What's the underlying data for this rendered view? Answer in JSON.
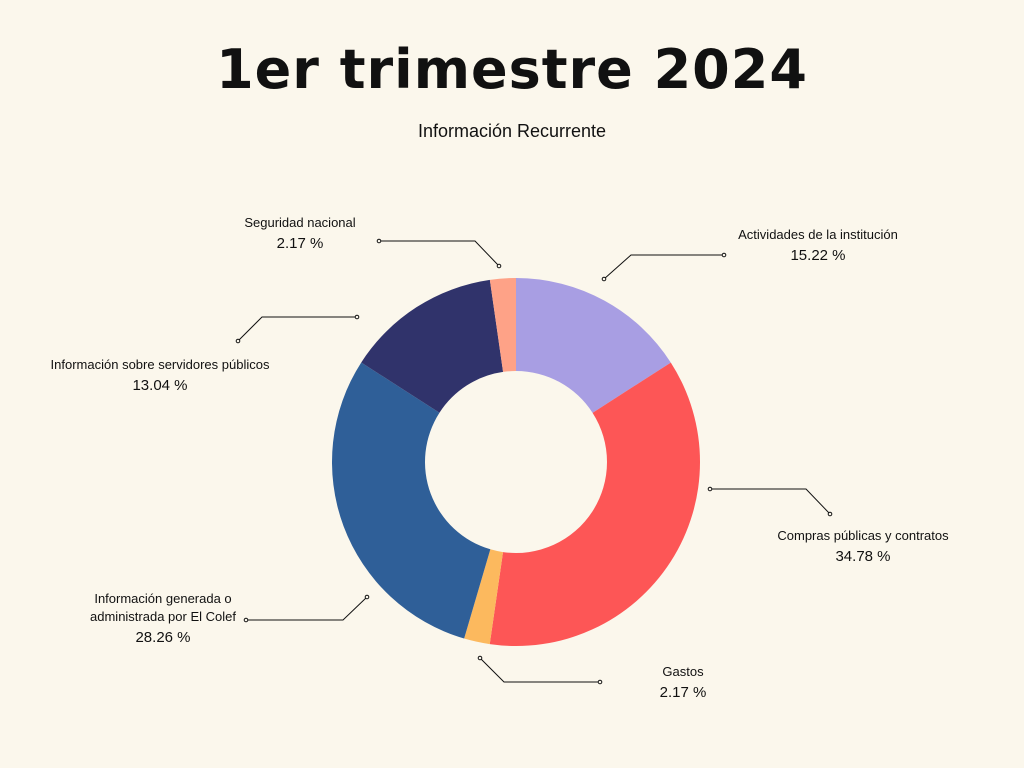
{
  "title": "1er trimestre 2024",
  "subtitle": "Información Recurrente",
  "chart_data": {
    "type": "pie",
    "title": "1er trimestre 2024",
    "subtitle": "Información Recurrente",
    "donut": true,
    "slices": [
      {
        "label": "Actividades de la institución",
        "value": 15.22,
        "value_label": "15.22 %",
        "color": "#a89ee3"
      },
      {
        "label": "Compras públicas y contratos",
        "value": 34.78,
        "value_label": "34.78 %",
        "color": "#fd5656"
      },
      {
        "label": "Gastos",
        "value": 2.17,
        "value_label": "2.17 %",
        "color": "#fcb95e"
      },
      {
        "label": "Información generada o administrada por El Colef",
        "value": 28.26,
        "value_label": "28.26 %",
        "color": "#2f5f98"
      },
      {
        "label": "Información sobre  servidores públicos",
        "value": 13.04,
        "value_label": "13.04 %",
        "color": "#30336b"
      },
      {
        "label": "Seguridad nacional",
        "value": 2.17,
        "value_label": "2.17 %",
        "color": "#fea287"
      }
    ]
  }
}
